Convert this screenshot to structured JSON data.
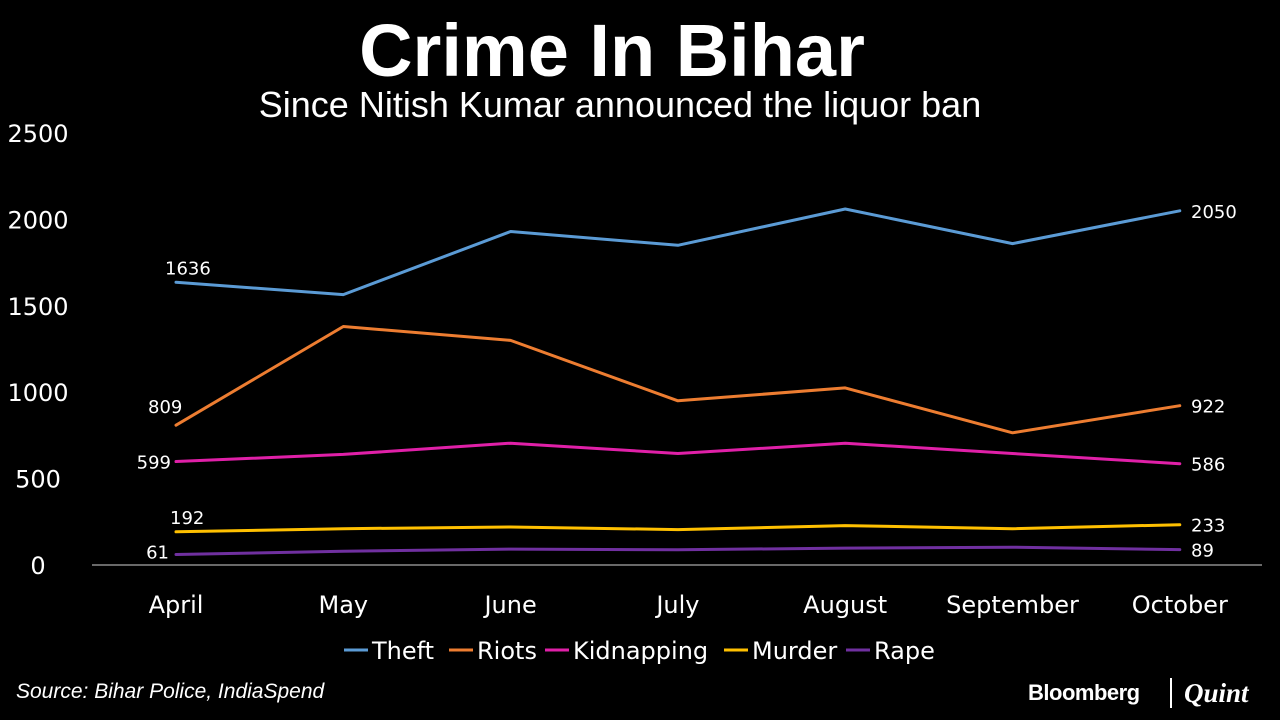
{
  "colors": {
    "background": "#000000",
    "text": "#ffffff",
    "axis": "#8c8c8c"
  },
  "chart_data": {
    "type": "line",
    "title": "Crime In Bihar",
    "subtitle": "Since Nitish Kumar announced the liquor ban",
    "xlabel": "",
    "ylabel": "",
    "categories": [
      "April",
      "May",
      "June",
      "July",
      "August",
      "September",
      "October"
    ],
    "ylim": [
      0,
      2500
    ],
    "yticks": [
      0,
      500,
      1000,
      1500,
      2000,
      2500
    ],
    "grid": false,
    "legend_position": "bottom",
    "series": [
      {
        "name": "Theft",
        "color": "#5b9bd5",
        "values": [
          1636,
          1565,
          1930,
          1850,
          2060,
          1860,
          2050
        ],
        "labels": {
          "first": "1636",
          "last": "2050"
        }
      },
      {
        "name": "Riots",
        "color": "#ed7d31",
        "values": [
          809,
          1380,
          1300,
          950,
          1025,
          765,
          922
        ],
        "labels": {
          "first": "809",
          "last": "922"
        }
      },
      {
        "name": "Kidnapping",
        "color": "#e020a8",
        "values": [
          599,
          640,
          705,
          645,
          705,
          645,
          586
        ],
        "labels": {
          "first": "599",
          "last": "586"
        }
      },
      {
        "name": "Murder",
        "color": "#ffc000",
        "values": [
          192,
          210,
          220,
          205,
          228,
          210,
          233
        ],
        "labels": {
          "first": "192",
          "last": "233"
        }
      },
      {
        "name": "Rape",
        "color": "#7030a0",
        "values": [
          61,
          80,
          92,
          88,
          98,
          103,
          89
        ],
        "labels": {
          "first": "61",
          "last": "89"
        }
      }
    ]
  },
  "source": "Source: Bihar Police, IndiaSpend",
  "brand": {
    "left": "Bloomberg",
    "right": "Quint"
  }
}
